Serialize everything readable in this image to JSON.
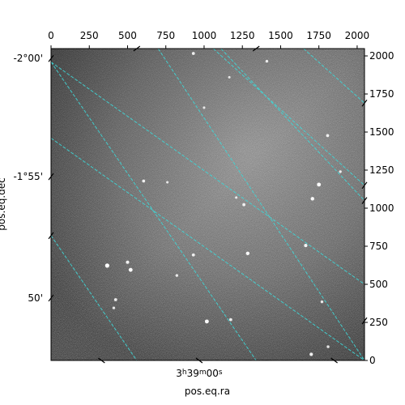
{
  "chart_data": {
    "type": "image",
    "xlabel": "pos.eq.ra",
    "ylabel": "pos.eq.dec",
    "pixel_axes": {
      "x_range": [
        0,
        2048
      ],
      "y_range": [
        0,
        2048
      ],
      "top_ticks": [
        0,
        250,
        500,
        750,
        1000,
        1250,
        1500,
        1750,
        2000
      ],
      "right_ticks": [
        0,
        250,
        500,
        750,
        1000,
        1250,
        1500,
        1750,
        2000
      ]
    },
    "world_ticks": {
      "ra_labels": [
        {
          "label": "3h39m00s",
          "h": "3",
          "m": "39",
          "s": "00",
          "x": 968,
          "y": 0
        }
      ],
      "dec_labels": [
        {
          "label": "-2°00'",
          "x": 0,
          "y": 1983
        },
        {
          "label": "-1°55'",
          "x": 0,
          "y": 1207
        },
        {
          "label": "50'",
          "x": 0,
          "y": 410
        }
      ]
    },
    "grid": {
      "color": "#3fd7d7",
      "style": "dashed",
      "ra_lines": [
        {
          "x0": 0,
          "y0": 1460,
          "x1": 2048,
          "y1": 0
        },
        {
          "x0": 0,
          "y0": 1960,
          "x1": 2048,
          "y1": 500
        },
        {
          "x0": 1110,
          "y0": 2048,
          "x1": 2048,
          "y1": 1050
        },
        {
          "x0": 1650,
          "y0": 2048,
          "x1": 2048,
          "y1": 1690
        }
      ],
      "dec_lines": [
        {
          "x0": 0,
          "y0": 1960,
          "x1": 1340,
          "y1": 0
        },
        {
          "x0": 700,
          "y0": 2048,
          "x1": 2048,
          "y1": 0
        },
        {
          "x0": 0,
          "y0": 820,
          "x1": 560,
          "y1": 0
        },
        {
          "x0": 1060,
          "y0": 2048,
          "x1": 2048,
          "y1": 1150
        }
      ]
    },
    "stars": [
      {
        "x": 367,
        "y": 623,
        "b": 1.0
      },
      {
        "x": 520,
        "y": 595,
        "b": 0.9
      },
      {
        "x": 500,
        "y": 645,
        "b": 0.7
      },
      {
        "x": 1285,
        "y": 703,
        "b": 0.8
      },
      {
        "x": 1018,
        "y": 256,
        "b": 0.9
      },
      {
        "x": 1750,
        "y": 1155,
        "b": 0.9
      },
      {
        "x": 1708,
        "y": 1062,
        "b": 0.8
      },
      {
        "x": 1664,
        "y": 755,
        "b": 0.7
      },
      {
        "x": 1807,
        "y": 1477,
        "b": 0.6
      },
      {
        "x": 1260,
        "y": 1023,
        "b": 0.6
      },
      {
        "x": 605,
        "y": 1178,
        "b": 0.6
      },
      {
        "x": 930,
        "y": 693,
        "b": 0.6
      },
      {
        "x": 422,
        "y": 399,
        "b": 0.6
      },
      {
        "x": 1890,
        "y": 1240,
        "b": 0.5
      },
      {
        "x": 1174,
        "y": 268,
        "b": 0.6
      },
      {
        "x": 1700,
        "y": 40,
        "b": 0.7
      },
      {
        "x": 1810,
        "y": 90,
        "b": 0.5
      },
      {
        "x": 822,
        "y": 558,
        "b": 0.5
      },
      {
        "x": 1410,
        "y": 1965,
        "b": 0.5
      },
      {
        "x": 930,
        "y": 2016,
        "b": 0.6
      },
      {
        "x": 1165,
        "y": 1860,
        "b": 0.4
      },
      {
        "x": 1000,
        "y": 1660,
        "b": 0.4
      },
      {
        "x": 1770,
        "y": 385,
        "b": 0.5
      },
      {
        "x": 410,
        "y": 345,
        "b": 0.5
      },
      {
        "x": 1210,
        "y": 1070,
        "b": 0.4
      },
      {
        "x": 760,
        "y": 1170,
        "b": 0.4
      }
    ]
  }
}
